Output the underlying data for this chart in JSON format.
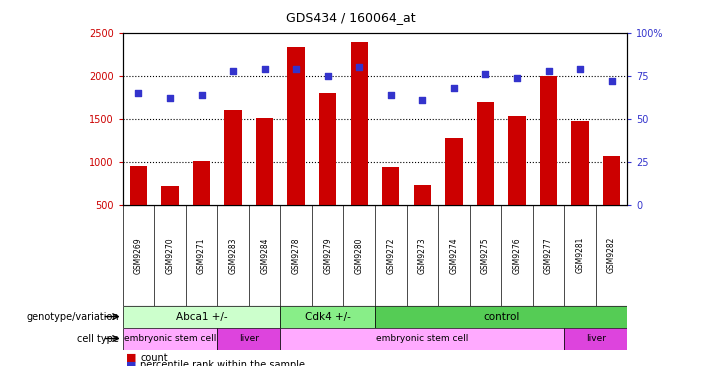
{
  "title": "GDS434 / 160064_at",
  "samples": [
    "GSM9269",
    "GSM9270",
    "GSM9271",
    "GSM9283",
    "GSM9284",
    "GSM9278",
    "GSM9279",
    "GSM9280",
    "GSM9272",
    "GSM9273",
    "GSM9274",
    "GSM9275",
    "GSM9276",
    "GSM9277",
    "GSM9281",
    "GSM9282"
  ],
  "counts": [
    950,
    720,
    1010,
    1600,
    1510,
    2340,
    1800,
    2400,
    940,
    730,
    1280,
    1700,
    1530,
    2000,
    1480,
    1070
  ],
  "percentile_ranks": [
    65,
    62,
    64,
    78,
    79,
    79,
    75,
    80,
    64,
    61,
    68,
    76,
    74,
    78,
    79,
    72
  ],
  "count_ylim": [
    500,
    2500
  ],
  "count_yticks": [
    500,
    1000,
    1500,
    2000,
    2500
  ],
  "percentile_ylim": [
    0,
    100
  ],
  "percentile_yticks": [
    0,
    25,
    50,
    75,
    100
  ],
  "bar_color": "#cc0000",
  "dot_color": "#3333cc",
  "bar_width": 0.55,
  "genotype_groups": [
    {
      "label": "Abca1 +/-",
      "start": 0,
      "end": 5,
      "color": "#ccffcc"
    },
    {
      "label": "Cdk4 +/-",
      "start": 5,
      "end": 8,
      "color": "#88ee88"
    },
    {
      "label": "control",
      "start": 8,
      "end": 16,
      "color": "#55cc55"
    }
  ],
  "celltype_groups": [
    {
      "label": "embryonic stem cell",
      "start": 0,
      "end": 3,
      "color": "#ffaaff"
    },
    {
      "label": "liver",
      "start": 3,
      "end": 5,
      "color": "#dd44dd"
    },
    {
      "label": "embryonic stem cell",
      "start": 5,
      "end": 14,
      "color": "#ffaaff"
    },
    {
      "label": "liver",
      "start": 14,
      "end": 16,
      "color": "#dd44dd"
    }
  ],
  "legend_count_label": "count",
  "legend_pct_label": "percentile rank within the sample",
  "genotype_label": "genotype/variation",
  "celltype_label": "cell type",
  "left_tick_color": "#cc0000",
  "right_tick_color": "#3333cc",
  "xlabel_bg_color": "#cccccc",
  "grid_yticks": [
    1000,
    1500,
    2000
  ]
}
